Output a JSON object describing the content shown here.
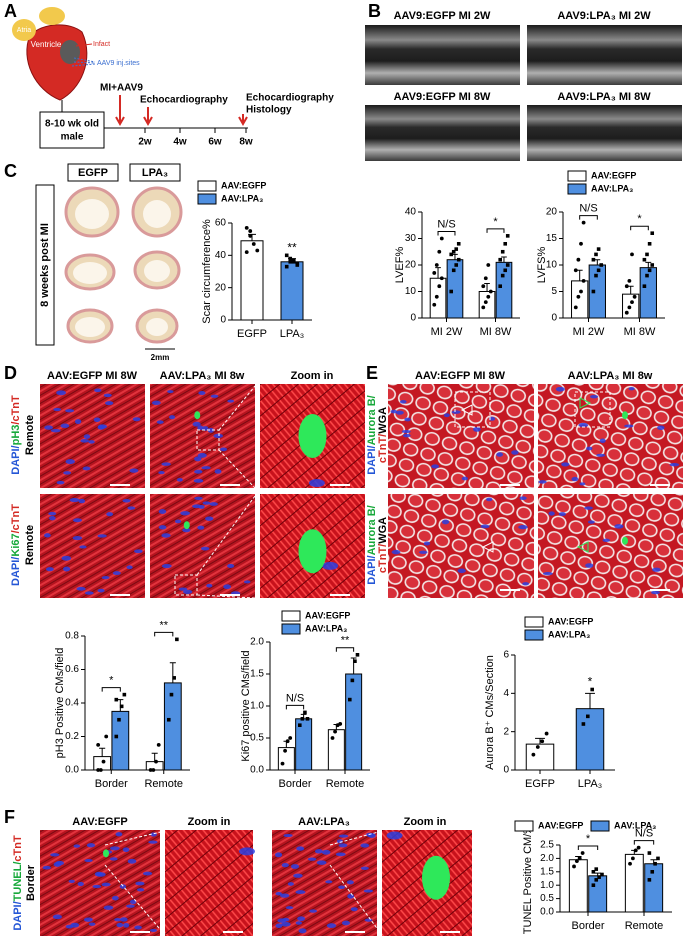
{
  "figure": {
    "panel_letters": [
      "A",
      "B",
      "C",
      "D",
      "E",
      "F"
    ],
    "a": {
      "atria": "Atria",
      "ventricle": "Ventricle",
      "infarct": "Infact",
      "inj_sites": "AAV9 inj.sites",
      "mouse": [
        "8-10 wk old",
        "male"
      ],
      "surgery": "MI+AAV9",
      "echo_first": "Echocardiography",
      "echo_last": "Echocardiography",
      "histology": "Histology",
      "timepoints": [
        "2w",
        "4w",
        "6w",
        "8w"
      ]
    },
    "b": {
      "titles": [
        "AAV9:EGFP MI 2W",
        "AAV9:LPA₃ MI 2W",
        "AAV9:EGFP MI 8W",
        "AAV9:LPA₃ MI 8W"
      ]
    },
    "c": {
      "columns": [
        "EGFP",
        "LPA₃"
      ],
      "row": "8 weeks post MI",
      "scale": "2mm"
    },
    "d": {
      "columns": [
        "AAV:EGFP MI 8W",
        "AAV:LPA₃ MI 8w",
        "Zoom in"
      ],
      "rows": [
        {
          "stain": [
            "DAPI/",
            "pH3",
            "/cTnT"
          ],
          "region": "Remote"
        },
        {
          "stain": [
            "DAPI/",
            "Ki67",
            "/cTnT"
          ],
          "region": "Remote"
        }
      ]
    },
    "e": {
      "columns": [
        "AAV:EGFP MI 8W",
        "AAV:LPA₃ MI 8w"
      ],
      "rows": [
        {
          "stain": [
            "DAPI/",
            "Aurora B/",
            "cTnT/",
            "WGA"
          ]
        },
        {
          "stain": [
            "DAPI/",
            "Aurora B/",
            "cTnT/",
            "WGA"
          ]
        }
      ]
    },
    "f": {
      "columns": [
        "AAV:EGFP",
        "Zoom in",
        "AAV:LPA₃",
        "Zoom in"
      ],
      "stain": [
        "DAPI/",
        "TUNEL/",
        "cTnT"
      ],
      "region": "Border"
    }
  },
  "chart_data": [
    {
      "type": "bar",
      "grouped": false,
      "y_label": "Scar circumference%",
      "categories": [
        "EGFP",
        "LPA₃"
      ],
      "series": [
        {
          "name": "AAV:EGFP",
          "color": "#ffffff",
          "marker": "circle",
          "values": [
            49,
            null
          ],
          "errors": [
            4,
            null
          ],
          "points": [
            [
              57,
              52,
              47,
              43,
              42,
              55
            ],
            null
          ]
        },
        {
          "name": "AAV:LPA₃",
          "color": "#4f8fe0",
          "marker": "square",
          "values": [
            null,
            36
          ],
          "errors": [
            null,
            2
          ],
          "points": [
            null,
            [
              40,
              38,
              36,
              34,
              33,
              36,
              37,
              35
            ]
          ]
        }
      ],
      "annotations": [
        null,
        "**"
      ],
      "ylim": [
        0,
        60
      ],
      "yticks": [
        0,
        20,
        40,
        60
      ],
      "legend": true
    },
    {
      "type": "bar",
      "grouped": true,
      "y_label": "LVEF%",
      "categories": [
        "MI 2W",
        "MI 8W"
      ],
      "series": [
        {
          "color": "#ffffff",
          "marker": "circle",
          "values": [
            15,
            10
          ],
          "errors": [
            4,
            3
          ],
          "points": [
            [
              5,
              8,
              12,
              15,
              17,
              20,
              25,
              30
            ],
            [
              4,
              6,
              8,
              10,
              12,
              15,
              20
            ]
          ]
        },
        {
          "color": "#4f8fe0",
          "marker": "square",
          "values": [
            22,
            21
          ],
          "errors": [
            2,
            2
          ],
          "points": [
            [
              10,
              18,
              20,
              22,
              24,
              25,
              26,
              28
            ],
            [
              12,
              16,
              18,
              20,
              22,
              25,
              28,
              31
            ]
          ]
        }
      ],
      "annotations": [
        "N/S",
        "*"
      ],
      "ylim": [
        0,
        40
      ],
      "yticks": [
        0,
        10,
        20,
        30,
        40
      ],
      "legend": false
    },
    {
      "type": "bar",
      "grouped": true,
      "y_label": "LVFS%",
      "categories": [
        "MI 2W",
        "MI 8W"
      ],
      "series": [
        {
          "name": "AAV:EGFP",
          "color": "#ffffff",
          "marker": "circle",
          "values": [
            7,
            4.5
          ],
          "errors": [
            2,
            1.5
          ],
          "points": [
            [
              2,
              4,
              5,
              7,
              9,
              11,
              14,
              18
            ],
            [
              1,
              2,
              3,
              4,
              6,
              7,
              12
            ]
          ]
        },
        {
          "name": "AAV:LPA₃",
          "color": "#4f8fe0",
          "marker": "square",
          "values": [
            10,
            9.5
          ],
          "errors": [
            1,
            1
          ],
          "points": [
            [
              5,
              8,
              9,
              10,
              11,
              12,
              13
            ],
            [
              6,
              8,
              9,
              10,
              11,
              12,
              14,
              16
            ]
          ]
        }
      ],
      "annotations": [
        "N/S",
        "*"
      ],
      "ylim": [
        0,
        20
      ],
      "yticks": [
        0,
        5,
        10,
        15,
        20
      ],
      "legend": true
    },
    {
      "type": "bar",
      "grouped": true,
      "y_label": "pH3 Positive CMs/field",
      "categories": [
        "Border",
        "Remote"
      ],
      "series": [
        {
          "color": "#ffffff",
          "marker": "circle",
          "values": [
            0.08,
            0.05
          ],
          "errors": [
            0.05,
            0.05
          ],
          "points": [
            [
              0,
              0,
              0.05,
              0.2,
              0.15
            ],
            [
              0,
              0,
              0.05,
              0.15
            ]
          ]
        },
        {
          "color": "#4f8fe0",
          "marker": "square",
          "values": [
            0.35,
            0.52
          ],
          "errors": [
            0.07,
            0.12
          ],
          "points": [
            [
              0.2,
              0.3,
              0.38,
              0.45,
              0.42
            ],
            [
              0.3,
              0.45,
              0.55,
              0.78
            ]
          ]
        }
      ],
      "annotations": [
        "*",
        "**"
      ],
      "ylim": [
        0,
        0.8
      ],
      "yticks": [
        {
          "value": 0,
          "label": "0.0"
        },
        0.2,
        0.4,
        0.6,
        0.8
      ],
      "legend": false
    },
    {
      "type": "bar",
      "grouped": true,
      "y_label": "Ki67 positive CMs/field",
      "categories": [
        "Border",
        "Remote"
      ],
      "series": [
        {
          "name": "AAV:EGFP",
          "color": "#ffffff",
          "marker": "circle",
          "values": [
            0.35,
            0.63
          ],
          "errors": [
            0.1,
            0.08
          ],
          "points": [
            [
              0.1,
              0.3,
              0.45,
              0.5
            ],
            [
              0.5,
              0.6,
              0.7,
              0.72
            ]
          ]
        },
        {
          "name": "AAV:LPA₃",
          "color": "#4f8fe0",
          "marker": "square",
          "values": [
            0.8,
            1.5
          ],
          "errors": [
            0.07,
            0.25
          ],
          "points": [
            [
              0.7,
              0.8,
              0.9,
              0.8
            ],
            [
              1.1,
              1.4,
              1.7,
              1.8
            ]
          ]
        }
      ],
      "annotations": [
        "N/S",
        "**"
      ],
      "ylim": [
        0,
        2
      ],
      "yticks": [
        {
          "value": 0,
          "label": "0.0"
        },
        0.5,
        {
          "value": 1,
          "label": "1.0"
        },
        1.5,
        {
          "value": 2,
          "label": "2.0"
        }
      ],
      "legend": true
    },
    {
      "type": "bar",
      "grouped": false,
      "y_label": "Aurora B⁺ CMs/Section",
      "categories": [
        "EGFP",
        "LPA₃"
      ],
      "series": [
        {
          "name": "AAV:EGFP",
          "color": "#ffffff",
          "marker": "circle",
          "values": [
            1.35,
            null
          ],
          "errors": [
            0.3,
            null
          ],
          "points": [
            [
              0.8,
              1.2,
              1.5,
              1.9
            ],
            null
          ]
        },
        {
          "name": "AAV:LPA₃",
          "color": "#4f8fe0",
          "marker": "square",
          "values": [
            null,
            3.2
          ],
          "errors": [
            null,
            0.8
          ],
          "points": [
            null,
            [
              2.4,
              2.8,
              4.2
            ]
          ]
        }
      ],
      "annotations": [
        null,
        "*"
      ],
      "ylim": [
        0,
        6
      ],
      "yticks": [
        0,
        2,
        4,
        6
      ],
      "legend": true
    },
    {
      "type": "bar",
      "grouped": true,
      "y_label": "TUNEL Positive CM/‰",
      "categories": [
        "Border",
        "Remote"
      ],
      "series": [
        {
          "name": "AAV:EGFP",
          "color": "#ffffff",
          "marker": "circle",
          "values": [
            1.95,
            2.15
          ],
          "errors": [
            0.12,
            0.15
          ],
          "points": [
            [
              1.7,
              1.9,
              2.0,
              2.2
            ],
            [
              1.8,
              2.0,
              2.3,
              2.4
            ]
          ]
        },
        {
          "name": "AAV:LPA₃",
          "color": "#4f8fe0",
          "marker": "square",
          "values": [
            1.35,
            1.8
          ],
          "errors": [
            0.1,
            0.15
          ],
          "points": [
            [
              1.0,
              1.2,
              1.3,
              1.4,
              1.5,
              1.6
            ],
            [
              1.2,
              1.5,
              1.8,
              2.0,
              2.2
            ]
          ]
        }
      ],
      "annotations": [
        "*",
        "N/S"
      ],
      "ylim": [
        0,
        2.5
      ],
      "yticks": [
        {
          "value": 0,
          "label": "0.0"
        },
        0.5,
        {
          "value": 1,
          "label": "1.0"
        },
        1.5,
        {
          "value": 2,
          "label": "2.0"
        },
        2.5
      ],
      "legend": true
    }
  ]
}
